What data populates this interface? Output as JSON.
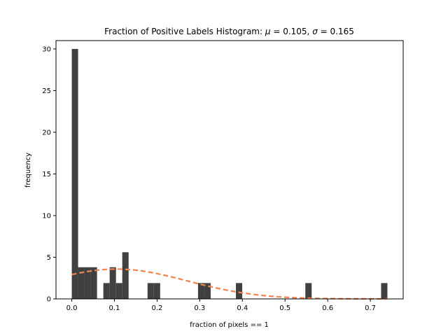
{
  "chart_data": {
    "type": "bar",
    "title": "Fraction of Positive Labels Histogram",
    "title_mu": "0.105",
    "title_sigma": "0.165",
    "xlabel": "fraction of pixels == 1",
    "ylabel": "frequency",
    "xlim": [
      -0.037,
      0.777
    ],
    "ylim": [
      0,
      31
    ],
    "xticks": [
      "0.0",
      "0.1",
      "0.2",
      "0.3",
      "0.4",
      "0.5",
      "0.6",
      "0.7"
    ],
    "xtick_values": [
      0.0,
      0.1,
      0.2,
      0.3,
      0.4,
      0.5,
      0.6,
      0.7
    ],
    "yticks": [
      "0",
      "5",
      "10",
      "15",
      "20",
      "25",
      "30"
    ],
    "ytick_values": [
      0,
      5,
      10,
      15,
      20,
      25,
      30
    ],
    "bin_start": 0.0,
    "bin_width": 0.0148,
    "frequencies": [
      30,
      3.8,
      3.8,
      3.8,
      0,
      1.9,
      3.8,
      1.9,
      5.6,
      0,
      0,
      0,
      1.9,
      1.9,
      0,
      0,
      0,
      0,
      0,
      0,
      1.9,
      1.9,
      0,
      0,
      0,
      0,
      1.9,
      0,
      0,
      0,
      0,
      0,
      0,
      0,
      0,
      0,
      0,
      1.9,
      0,
      0,
      0,
      0,
      0,
      0,
      0,
      0,
      0,
      0,
      0,
      1.9
    ],
    "bar_color": "#404040",
    "fit_curve": {
      "style": "dashed",
      "color": "#f4834f",
      "mu": 0.105,
      "sigma": 0.165,
      "x_range": [
        0.0,
        0.74
      ]
    }
  }
}
